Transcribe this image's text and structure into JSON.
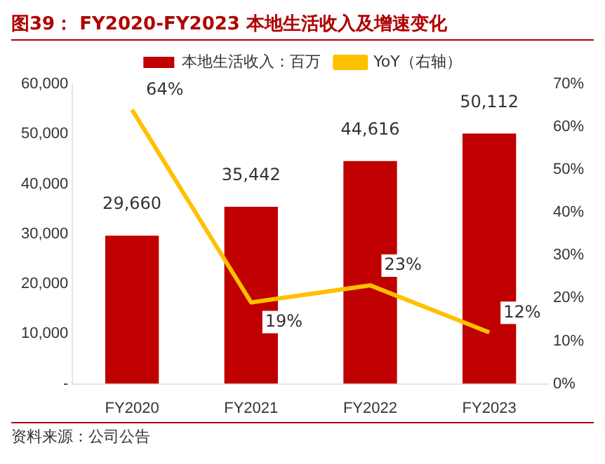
{
  "chart_data": {
    "type": "bar",
    "title": "图39： FY2020-FY2023 本地生活收入及增速变化",
    "categories": [
      "FY2020",
      "FY2021",
      "FY2022",
      "FY2023"
    ],
    "series": [
      {
        "name": "本地生活收入：百万",
        "color": "#c00000",
        "values": [
          29660,
          35442,
          44616,
          50112
        ],
        "value_labels": [
          "29,660",
          "35,442",
          "44,616",
          "50,112"
        ]
      },
      {
        "name": "YoY（右轴）",
        "type": "line",
        "axis": "y2",
        "color": "#ffc000",
        "marker": "none",
        "values": [
          64,
          19,
          23,
          12
        ],
        "value_labels": [
          "64%",
          "19%",
          "23%",
          "12%"
        ]
      }
    ],
    "ylim": [
      0,
      60000
    ],
    "yticks": [
      {
        "value": 0,
        "label": "-"
      },
      {
        "value": 10000,
        "label": "10,000"
      },
      {
        "value": 20000,
        "label": "20,000"
      },
      {
        "value": 30000,
        "label": "30,000"
      },
      {
        "value": 40000,
        "label": "40,000"
      },
      {
        "value": 50000,
        "label": "50,000"
      },
      {
        "value": 60000,
        "label": "60,000"
      }
    ],
    "y2lim": [
      0,
      70
    ],
    "y2ticks": [
      {
        "value": 0,
        "label": "0%"
      },
      {
        "value": 10,
        "label": "10%"
      },
      {
        "value": 20,
        "label": "20%"
      },
      {
        "value": 30,
        "label": "30%"
      },
      {
        "value": 40,
        "label": "40%"
      },
      {
        "value": 50,
        "label": "50%"
      },
      {
        "value": 60,
        "label": "60%"
      },
      {
        "value": 70,
        "label": "70%"
      }
    ],
    "grid": false,
    "legend": "top",
    "annotations": [
      "资料来源：公司公告"
    ]
  }
}
